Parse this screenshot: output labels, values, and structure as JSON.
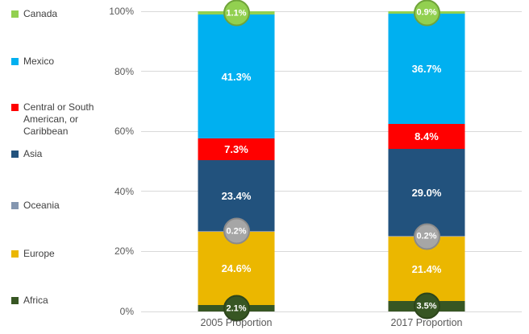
{
  "colors": {
    "background": "#ffffff",
    "gridline": "#d9d9d9",
    "axis_text": "#595959",
    "legend_text": "#404040",
    "data_label_text": "#ffffff"
  },
  "chart_data": {
    "type": "bar",
    "subtype": "stacked-100-percent-column",
    "title": "",
    "xlabel": "",
    "ylabel": "",
    "ylim": [
      0,
      100
    ],
    "grid": true,
    "legend_position": "left",
    "categories": [
      "2005 Proportion",
      "2017 Proportion"
    ],
    "y_ticks": [
      "0%",
      "20%",
      "40%",
      "60%",
      "80%",
      "100%"
    ],
    "series": [
      {
        "name": "Canada",
        "color": "#92d050",
        "callout": true,
        "callout_fill": "#92d050",
        "callout_border": "#6fa33a",
        "values": [
          1.1,
          0.9
        ],
        "labels": [
          "1.1%",
          "0.9%"
        ]
      },
      {
        "name": "Mexico",
        "color": "#00b0f0",
        "callout": false,
        "values": [
          41.3,
          36.7
        ],
        "labels": [
          "41.3%",
          "36.7%"
        ]
      },
      {
        "name": "Central or South American, or Caribbean",
        "color": "#ff0000",
        "callout": false,
        "values": [
          7.3,
          8.4
        ],
        "labels": [
          "7.3%",
          "8.4%"
        ]
      },
      {
        "name": "Asia",
        "color": "#22527d",
        "callout": false,
        "values": [
          23.4,
          29.0
        ],
        "labels": [
          "23.4%",
          "29.0%"
        ]
      },
      {
        "name": "Oceania",
        "color": "#8496b0",
        "callout": true,
        "callout_fill": "#a6a6a6",
        "callout_border": "#8a8a8a",
        "values": [
          0.2,
          0.2
        ],
        "labels": [
          "0.2%",
          "0.2%"
        ]
      },
      {
        "name": "Europe",
        "color": "#ebb700",
        "callout": false,
        "values": [
          24.6,
          21.4
        ],
        "labels": [
          "24.6%",
          "21.4%"
        ]
      },
      {
        "name": "Africa",
        "color": "#375623",
        "callout": true,
        "callout_fill": "#375623",
        "callout_border": "#2c451b",
        "values": [
          2.1,
          3.5
        ],
        "labels": [
          "2.1%",
          "3.5%"
        ]
      }
    ]
  }
}
